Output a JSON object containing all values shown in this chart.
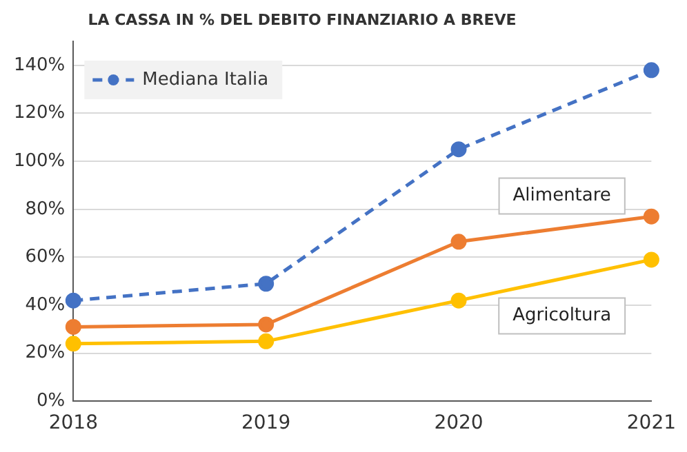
{
  "chart_data": {
    "type": "line",
    "title": "LA CASSA IN % DEL DEBITO FINANZIARIO A BREVE",
    "categories": [
      "2018",
      "2019",
      "2020",
      "2021"
    ],
    "series": [
      {
        "name": "Mediana Italia",
        "color": "#4472c4",
        "values": [
          42,
          49,
          105,
          138
        ],
        "line_style": "dashed"
      },
      {
        "name": "Alimentare",
        "color": "#ed7d31",
        "values": [
          31,
          32,
          66.5,
          77
        ],
        "line_style": "solid"
      },
      {
        "name": "Agricoltura",
        "color": "#ffc000",
        "values": [
          24,
          25,
          42,
          59
        ],
        "line_style": "solid"
      }
    ],
    "ylim": [
      0,
      150
    ],
    "yticks": [
      {
        "value": 0,
        "label": "0%"
      },
      {
        "value": 20,
        "label": "20%"
      },
      {
        "value": 40,
        "label": "40%"
      },
      {
        "value": 60,
        "label": "60%"
      },
      {
        "value": 80,
        "label": "80%"
      },
      {
        "value": 100,
        "label": "100%"
      },
      {
        "value": 120,
        "label": "120%"
      },
      {
        "value": 140,
        "label": "140%"
      }
    ],
    "grid": "y",
    "legend": "top left",
    "marker": "circle"
  }
}
